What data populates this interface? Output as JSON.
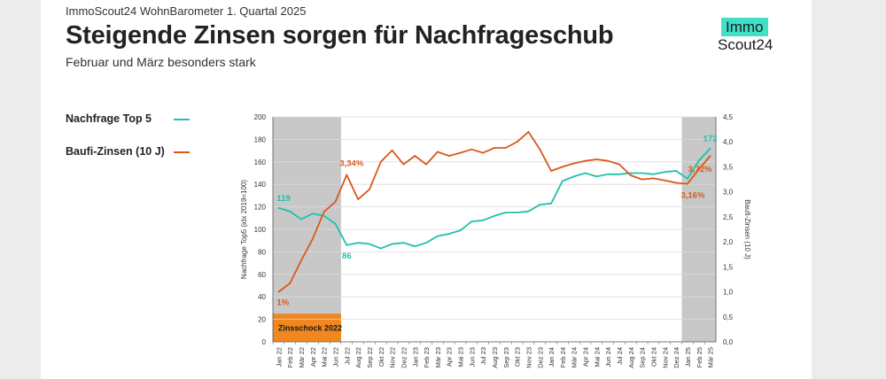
{
  "header": {
    "kicker": "ImmoScout24 WohnBarometer 1. Quartal 2025",
    "title": "Steigende Zinsen sorgen für Nachfrageschub",
    "subtitle": "Februar und März besonders stark"
  },
  "logo": {
    "top": "Immo",
    "bottom": "Scout24"
  },
  "colors": {
    "nachfrage": "#1fc2a8",
    "zinsen": "#d9581c",
    "shade": "#c8c8c8",
    "label_box": "#f0871f"
  },
  "chart_data": {
    "type": "line",
    "title": "",
    "categories": [
      "Jan 22",
      "Feb 22",
      "Mär 22",
      "Apr 22",
      "Mai 22",
      "Jun 22",
      "Jul 22",
      "Aug 22",
      "Sep 22",
      "Okt 22",
      "Nov 22",
      "Dez 22",
      "Jan 23",
      "Feb 23",
      "Mär 23",
      "Apr 23",
      "Mai 23",
      "Jun 23",
      "Jul 23",
      "Aug 23",
      "Sep 23",
      "Okt 23",
      "Nov 23",
      "Dez 23",
      "Jan 24",
      "Feb 24",
      "Mär 24",
      "Apr 24",
      "Mai 24",
      "Jun 24",
      "Jul 24",
      "Aug 24",
      "Sep 24",
      "Okt 24",
      "Nov 24",
      "Dez 24",
      "Jan 25",
      "Feb 25",
      "Mär 25"
    ],
    "series": [
      {
        "name": "Nachfrage Top 5",
        "axis": "left",
        "values": [
          119,
          116,
          109,
          114,
          112,
          105,
          86,
          88,
          87,
          83,
          87,
          88,
          85,
          88,
          94,
          96,
          99,
          107,
          108,
          112,
          115,
          115,
          116,
          122,
          123,
          143,
          147,
          150,
          147,
          149,
          149,
          150,
          150,
          149,
          151,
          152,
          145,
          161,
          172
        ]
      },
      {
        "name": "Baufi-Zinsen (10 J)",
        "axis": "right",
        "values": [
          1.0,
          1.17,
          1.63,
          2.06,
          2.6,
          2.8,
          3.34,
          2.85,
          3.05,
          3.6,
          3.83,
          3.55,
          3.72,
          3.55,
          3.8,
          3.72,
          3.78,
          3.85,
          3.78,
          3.88,
          3.88,
          4.0,
          4.2,
          3.85,
          3.42,
          3.5,
          3.57,
          3.62,
          3.65,
          3.62,
          3.55,
          3.33,
          3.25,
          3.27,
          3.23,
          3.18,
          3.16,
          3.45,
          3.72
        ]
      }
    ],
    "y_left": {
      "label": "Nachfrage Top5 (idx 2019=100)",
      "min": 0,
      "max": 200,
      "ticks": [
        "0",
        "20",
        "40",
        "60",
        "80",
        "100",
        "120",
        "140",
        "160",
        "180",
        "200"
      ]
    },
    "y_right": {
      "label": "Baufi-Zinsen (10 J)",
      "min": 0,
      "max": 4.5,
      "ticks": [
        "0,0",
        "0,5",
        "1,0",
        "1,5",
        "2,0",
        "2,5",
        "3,0",
        "3,5",
        "4,0",
        "4,5"
      ]
    },
    "shaded_ranges": [
      {
        "from": "Jan 22",
        "to": "Jun 22"
      },
      {
        "from": "Jan 25",
        "to": "Mär 25"
      }
    ],
    "shade_label": "Zinsschock 2022",
    "annotations": [
      {
        "text": "119",
        "series": 0,
        "index": 0,
        "place": "above"
      },
      {
        "text": "86",
        "series": 0,
        "index": 6,
        "place": "below"
      },
      {
        "text": "172",
        "series": 0,
        "index": 38,
        "place": "above"
      },
      {
        "text": "1%",
        "series": 1,
        "index": 0,
        "place": "below"
      },
      {
        "text": "3,34%",
        "series": 1,
        "index": 6,
        "place": "above"
      },
      {
        "text": "3,16%",
        "series": 1,
        "index": 36,
        "place": "below"
      },
      {
        "text": "3,72%",
        "series": 1,
        "index": 38,
        "place": "right"
      }
    ],
    "grid": true,
    "legend": "left"
  }
}
